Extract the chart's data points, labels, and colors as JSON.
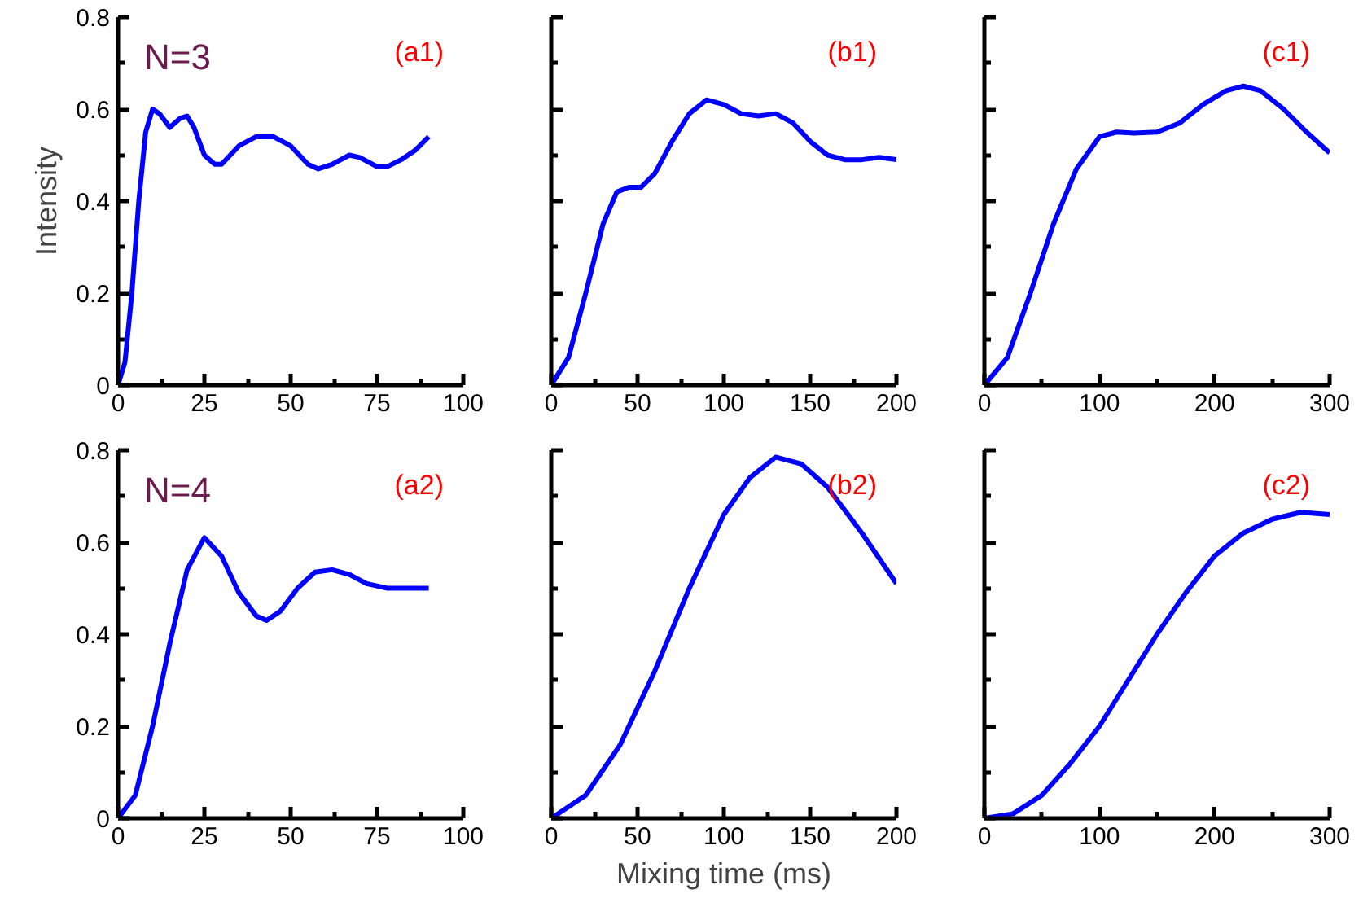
{
  "chart_data": [
    {
      "type": "line",
      "ylabel": "Intensity",
      "annotations": [
        "N=3",
        "(a1)"
      ],
      "grid": false,
      "marker": "none",
      "line_style": "solid",
      "x": [
        0,
        2,
        4,
        6,
        8,
        10,
        12,
        15,
        18,
        20,
        22,
        25,
        28,
        30,
        35,
        40,
        45,
        50,
        55,
        58,
        62,
        67,
        70,
        75,
        78,
        82,
        86,
        90
      ],
      "series": [
        {
          "color": "#0000ff",
          "values": [
            0,
            0.05,
            0.2,
            0.4,
            0.55,
            0.6,
            0.59,
            0.56,
            0.58,
            0.585,
            0.56,
            0.5,
            0.48,
            0.48,
            0.52,
            0.54,
            0.54,
            0.52,
            0.48,
            0.47,
            0.48,
            0.5,
            0.495,
            0.475,
            0.475,
            0.49,
            0.51,
            0.54
          ]
        }
      ],
      "xlim": [
        0,
        100
      ],
      "xticks": [
        0,
        {
          "value": 12.5,
          "label": null
        },
        25,
        {
          "value": 37.5,
          "label": null
        },
        50,
        {
          "value": 62.5,
          "label": null
        },
        75,
        {
          "value": 87.5,
          "label": null
        },
        100
      ],
      "ylim": [
        0,
        0.8
      ],
      "yticks": [
        0,
        {
          "value": 0.1,
          "label": null
        },
        0.2,
        {
          "value": 0.3,
          "label": null
        },
        0.4,
        {
          "value": 0.5,
          "label": null
        },
        0.6,
        {
          "value": 0.7,
          "label": null
        },
        0.8
      ]
    },
    {
      "type": "line",
      "annotations": [
        "(b1)"
      ],
      "grid": false,
      "marker": "none",
      "line_style": "solid",
      "tick_labels": "x",
      "x": [
        0,
        10,
        20,
        30,
        38,
        45,
        52,
        60,
        70,
        80,
        90,
        100,
        110,
        120,
        130,
        140,
        150,
        160,
        170,
        180,
        190,
        200
      ],
      "series": [
        {
          "color": "#0000ff",
          "values": [
            0,
            0.06,
            0.2,
            0.35,
            0.42,
            0.43,
            0.43,
            0.46,
            0.53,
            0.59,
            0.62,
            0.61,
            0.59,
            0.585,
            0.59,
            0.57,
            0.53,
            0.5,
            0.49,
            0.49,
            0.495,
            0.49
          ]
        }
      ],
      "xlim": [
        0,
        200
      ],
      "xticks": [
        0,
        {
          "value": 25,
          "label": null
        },
        50,
        {
          "value": 75,
          "label": null
        },
        100,
        {
          "value": 125,
          "label": null
        },
        150,
        {
          "value": 175,
          "label": null
        },
        200
      ],
      "ylim": [
        0,
        0.8
      ],
      "yticks": [
        0,
        {
          "value": 0.1,
          "label": null
        },
        0.2,
        {
          "value": 0.3,
          "label": null
        },
        0.4,
        {
          "value": 0.5,
          "label": null
        },
        0.6,
        {
          "value": 0.7,
          "label": null
        },
        0.8
      ]
    },
    {
      "type": "line",
      "annotations": [
        "(c1)"
      ],
      "grid": false,
      "marker": "none",
      "line_style": "solid",
      "tick_labels": "x",
      "x": [
        0,
        20,
        40,
        60,
        80,
        100,
        115,
        130,
        150,
        170,
        190,
        210,
        225,
        240,
        260,
        280,
        300
      ],
      "series": [
        {
          "color": "#0000ff",
          "values": [
            0,
            0.06,
            0.2,
            0.35,
            0.47,
            0.54,
            0.55,
            0.548,
            0.55,
            0.57,
            0.61,
            0.64,
            0.65,
            0.64,
            0.6,
            0.55,
            0.505
          ]
        }
      ],
      "xlim": [
        0,
        300
      ],
      "xticks": [
        0,
        {
          "value": 50,
          "label": null
        },
        100,
        {
          "value": 150,
          "label": null
        },
        200,
        {
          "value": 250,
          "label": null
        },
        300
      ],
      "ylim": [
        0,
        0.8
      ],
      "yticks": [
        0,
        {
          "value": 0.1,
          "label": null
        },
        0.2,
        {
          "value": 0.3,
          "label": null
        },
        0.4,
        {
          "value": 0.5,
          "label": null
        },
        0.6,
        {
          "value": 0.7,
          "label": null
        },
        0.8
      ]
    },
    {
      "type": "line",
      "annotations": [
        "N=4",
        "(a2)"
      ],
      "grid": false,
      "marker": "none",
      "line_style": "solid",
      "x": [
        0,
        5,
        10,
        15,
        20,
        25,
        30,
        35,
        40,
        43,
        47,
        52,
        57,
        62,
        67,
        72,
        78,
        84,
        90
      ],
      "series": [
        {
          "color": "#0000ff",
          "values": [
            0,
            0.05,
            0.2,
            0.38,
            0.54,
            0.61,
            0.57,
            0.49,
            0.44,
            0.43,
            0.45,
            0.5,
            0.535,
            0.54,
            0.53,
            0.51,
            0.5,
            0.5,
            0.5
          ]
        }
      ],
      "xlim": [
        0,
        100
      ],
      "xticks": [
        0,
        {
          "value": 12.5,
          "label": null
        },
        25,
        {
          "value": 37.5,
          "label": null
        },
        50,
        {
          "value": 62.5,
          "label": null
        },
        75,
        {
          "value": 87.5,
          "label": null
        },
        100
      ],
      "ylim": [
        0,
        0.8
      ],
      "yticks": [
        0,
        {
          "value": 0.1,
          "label": null
        },
        0.2,
        {
          "value": 0.3,
          "label": null
        },
        0.4,
        {
          "value": 0.5,
          "label": null
        },
        0.6,
        {
          "value": 0.7,
          "label": null
        },
        0.8
      ]
    },
    {
      "type": "line",
      "xlabel": "Mixing time (ms)",
      "annotations": [
        "(b2)"
      ],
      "grid": false,
      "marker": "none",
      "line_style": "solid",
      "tick_labels": "x",
      "x": [
        0,
        20,
        40,
        60,
        80,
        100,
        115,
        130,
        145,
        160,
        180,
        200
      ],
      "series": [
        {
          "color": "#0000ff",
          "values": [
            0,
            0.05,
            0.16,
            0.32,
            0.5,
            0.66,
            0.74,
            0.785,
            0.77,
            0.72,
            0.62,
            0.51
          ]
        }
      ],
      "xlim": [
        0,
        200
      ],
      "xticks": [
        0,
        {
          "value": 25,
          "label": null
        },
        50,
        {
          "value": 75,
          "label": null
        },
        100,
        {
          "value": 125,
          "label": null
        },
        150,
        {
          "value": 175,
          "label": null
        },
        200
      ],
      "ylim": [
        0,
        0.8
      ],
      "yticks": [
        0,
        {
          "value": 0.1,
          "label": null
        },
        0.2,
        {
          "value": 0.3,
          "label": null
        },
        0.4,
        {
          "value": 0.5,
          "label": null
        },
        0.6,
        {
          "value": 0.7,
          "label": null
        },
        0.8
      ]
    },
    {
      "type": "line",
      "annotations": [
        "(c2)"
      ],
      "grid": false,
      "marker": "none",
      "line_style": "solid",
      "tick_labels": "x",
      "x": [
        0,
        25,
        50,
        75,
        100,
        125,
        150,
        175,
        200,
        225,
        250,
        275,
        300
      ],
      "series": [
        {
          "color": "#0000ff",
          "values": [
            0,
            0.01,
            0.05,
            0.12,
            0.2,
            0.3,
            0.4,
            0.49,
            0.57,
            0.62,
            0.65,
            0.665,
            0.66
          ]
        }
      ],
      "xlim": [
        0,
        300
      ],
      "xticks": [
        0,
        {
          "value": 50,
          "label": null
        },
        100,
        {
          "value": 150,
          "label": null
        },
        200,
        {
          "value": 250,
          "label": null
        },
        300
      ],
      "ylim": [
        0,
        0.8
      ],
      "yticks": [
        0,
        {
          "value": 0.1,
          "label": null
        },
        0.2,
        {
          "value": 0.3,
          "label": null
        },
        0.4,
        {
          "value": 0.5,
          "label": null
        },
        0.6,
        {
          "value": 0.7,
          "label": null
        },
        0.8
      ]
    }
  ]
}
